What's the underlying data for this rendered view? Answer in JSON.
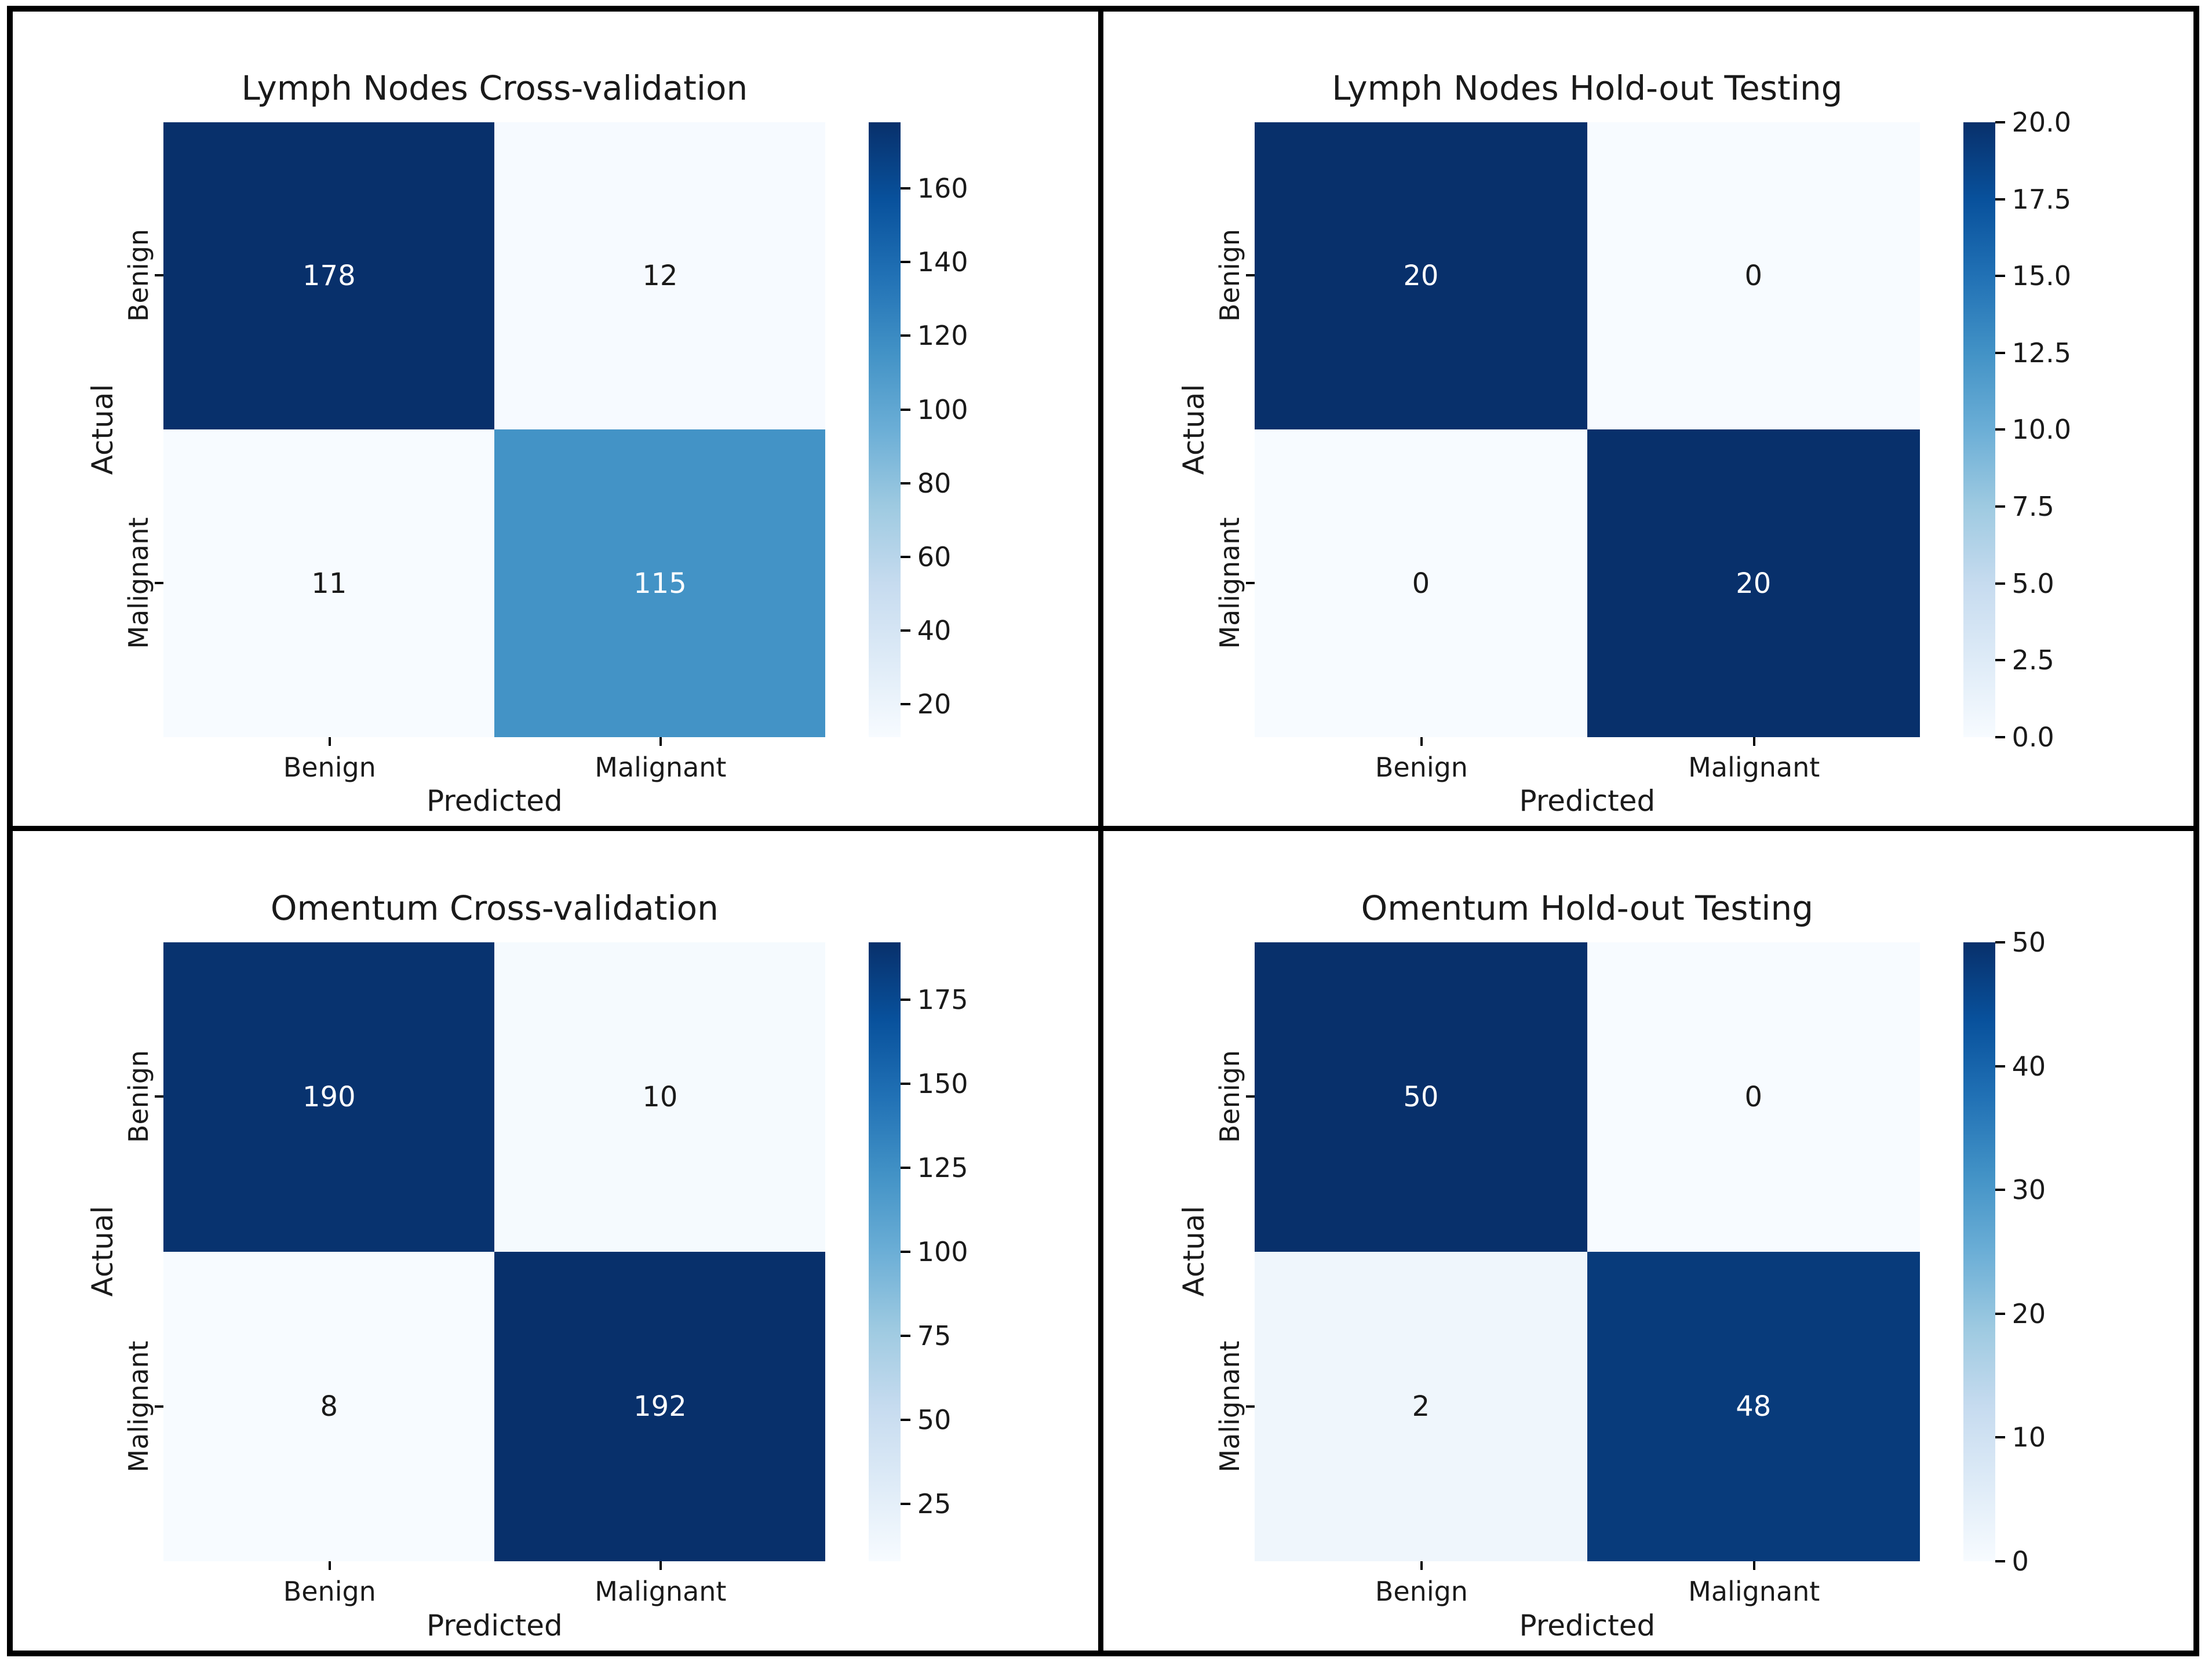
{
  "figure": {
    "layout": "2x2 grid of confusion matrix heatmaps",
    "background": "#ffffff",
    "border_color": "#000000"
  },
  "colors": {
    "colormap": "Blues",
    "blues_stops": [
      "#f7fbff",
      "#deebf7",
      "#c6dbef",
      "#9ecae1",
      "#6baed6",
      "#4292c6",
      "#2171b5",
      "#08519c",
      "#08306b"
    ],
    "cell_text_light": "#ffffff",
    "cell_text_dark": "#1a1a1a",
    "axis_text": "#1a1a1a"
  },
  "chart_data": [
    {
      "type": "heatmap",
      "title": "Lymph Nodes Cross-validation",
      "xlabel": "Predicted",
      "ylabel": "Actual",
      "x_ticklabels": [
        "Benign",
        "Malignant"
      ],
      "y_ticklabels": [
        "Benign",
        "Malignant"
      ],
      "matrix": [
        [
          178,
          12
        ],
        [
          11,
          115
        ]
      ],
      "vmin": 11,
      "vmax": 178,
      "legend_position": "right-colorbar",
      "colorbar_ticks": [
        {
          "label": "160",
          "value": 160
        },
        {
          "label": "140",
          "value": 140
        },
        {
          "label": "120",
          "value": 120
        },
        {
          "label": "100",
          "value": 100
        },
        {
          "label": "80",
          "value": 80
        },
        {
          "label": "60",
          "value": 60
        },
        {
          "label": "40",
          "value": 40
        },
        {
          "label": "20",
          "value": 20
        }
      ]
    },
    {
      "type": "heatmap",
      "title": "Lymph Nodes Hold-out Testing",
      "xlabel": "Predicted",
      "ylabel": "Actual",
      "x_ticklabels": [
        "Benign",
        "Malignant"
      ],
      "y_ticklabels": [
        "Benign",
        "Malignant"
      ],
      "matrix": [
        [
          20,
          0
        ],
        [
          0,
          20
        ]
      ],
      "vmin": 0,
      "vmax": 20,
      "legend_position": "right-colorbar",
      "colorbar_ticks": [
        {
          "label": "20.0",
          "value": 20.0
        },
        {
          "label": "17.5",
          "value": 17.5
        },
        {
          "label": "15.0",
          "value": 15.0
        },
        {
          "label": "12.5",
          "value": 12.5
        },
        {
          "label": "10.0",
          "value": 10.0
        },
        {
          "label": "7.5",
          "value": 7.5
        },
        {
          "label": "5.0",
          "value": 5.0
        },
        {
          "label": "2.5",
          "value": 2.5
        },
        {
          "label": "0.0",
          "value": 0.0
        }
      ]
    },
    {
      "type": "heatmap",
      "title": "Omentum Cross-validation",
      "xlabel": "Predicted",
      "ylabel": "Actual",
      "x_ticklabels": [
        "Benign",
        "Malignant"
      ],
      "y_ticklabels": [
        "Benign",
        "Malignant"
      ],
      "matrix": [
        [
          190,
          10
        ],
        [
          8,
          192
        ]
      ],
      "vmin": 8,
      "vmax": 192,
      "legend_position": "right-colorbar",
      "colorbar_ticks": [
        {
          "label": "175",
          "value": 175
        },
        {
          "label": "150",
          "value": 150
        },
        {
          "label": "125",
          "value": 125
        },
        {
          "label": "100",
          "value": 100
        },
        {
          "label": "75",
          "value": 75
        },
        {
          "label": "50",
          "value": 50
        },
        {
          "label": "25",
          "value": 25
        }
      ]
    },
    {
      "type": "heatmap",
      "title": "Omentum Hold-out Testing",
      "xlabel": "Predicted",
      "ylabel": "Actual",
      "x_ticklabels": [
        "Benign",
        "Malignant"
      ],
      "y_ticklabels": [
        "Benign",
        "Malignant"
      ],
      "matrix": [
        [
          50,
          0
        ],
        [
          2,
          48
        ]
      ],
      "vmin": 0,
      "vmax": 50,
      "legend_position": "right-colorbar",
      "colorbar_ticks": [
        {
          "label": "50",
          "value": 50
        },
        {
          "label": "40",
          "value": 40
        },
        {
          "label": "30",
          "value": 30
        },
        {
          "label": "20",
          "value": 20
        },
        {
          "label": "10",
          "value": 10
        },
        {
          "label": "0",
          "value": 0
        }
      ]
    }
  ]
}
